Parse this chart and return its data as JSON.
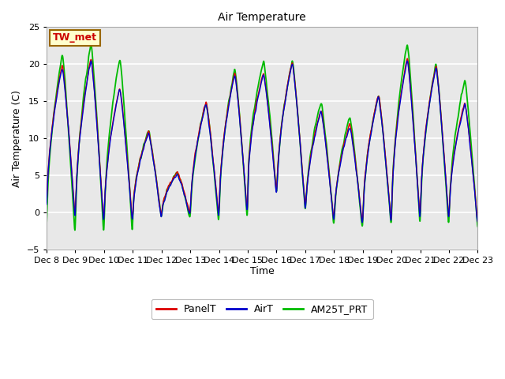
{
  "title": "Air Temperature",
  "ylabel": "Air Temperature (C)",
  "xlabel": "Time",
  "ylim": [
    -5,
    25
  ],
  "yticks": [
    -5,
    0,
    5,
    10,
    15,
    20,
    25
  ],
  "annotation_text": "TW_met",
  "bg_color": "#e8e8e8",
  "fig_bg": "#ffffff",
  "line_colors": {
    "PanelT": "#dd0000",
    "AirT": "#0000cc",
    "AM25T_PRT": "#00bb00"
  },
  "line_widths": {
    "PanelT": 1.0,
    "AirT": 1.0,
    "AM25T_PRT": 1.3
  },
  "xtick_labels": [
    "Dec 8",
    "Dec 9",
    "Dec 10",
    "Dec 11",
    "Dec 12",
    "Dec 13",
    "Dec 14",
    "Dec 15",
    "Dec 16",
    "Dec 17",
    "Dec 18",
    "Dec 19",
    "Dec 20",
    "Dec 21",
    "Dec 22",
    "Dec 23"
  ],
  "num_points": 3000,
  "title_fontsize": 10,
  "label_fontsize": 9,
  "tick_fontsize": 8,
  "legend_fontsize": 9
}
